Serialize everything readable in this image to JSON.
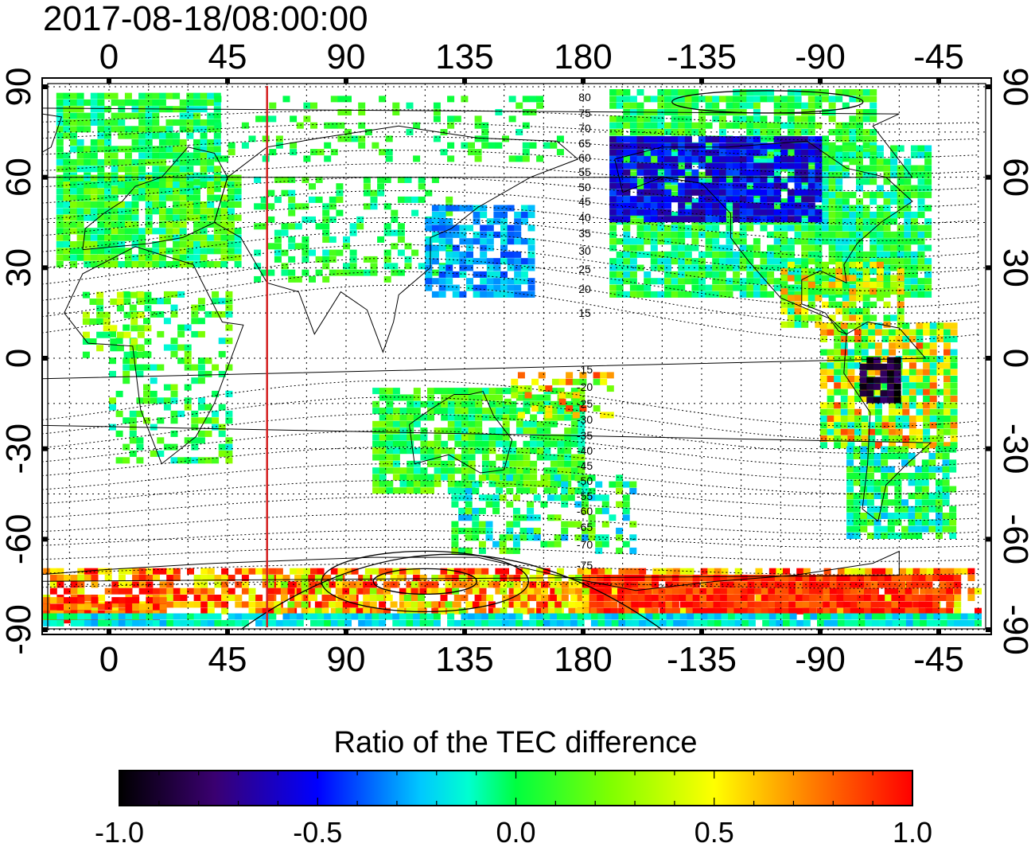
{
  "title": "2017-08-18/08:00:00",
  "map": {
    "x_tick_labels": [
      "0",
      "45",
      "90",
      "135",
      "180",
      "-135",
      "-90",
      "-45"
    ],
    "y_tick_labels": [
      "90",
      "60",
      "30",
      "0",
      "-30",
      "-60",
      "-90"
    ],
    "grid": "dotted every 15 degrees",
    "meridian_marker_longitude": 60,
    "meridian_marker_color": "#d42020",
    "contour_labels_north": [
      "80",
      "75",
      "70",
      "65",
      "60",
      "55",
      "50",
      "45",
      "40",
      "35",
      "30",
      "25",
      "20",
      "15"
    ],
    "contour_labels_south": [
      "-15",
      "-20",
      "-25",
      "-30",
      "-35",
      "-40",
      "-45",
      "-50",
      "-55",
      "-60",
      "-65",
      "-70",
      "-75"
    ]
  },
  "colorbar": {
    "title": "Ratio of the TEC difference",
    "tick_labels": [
      "-1.0",
      "-0.5",
      "0.0",
      "0.5",
      "1.0"
    ],
    "range": [
      -1.0,
      1.0
    ],
    "colors": [
      "#000000",
      "#3a0070",
      "#0000ff",
      "#00ffff",
      "#00ff00",
      "#ffff00",
      "#ff8000",
      "#ff0000"
    ]
  }
}
